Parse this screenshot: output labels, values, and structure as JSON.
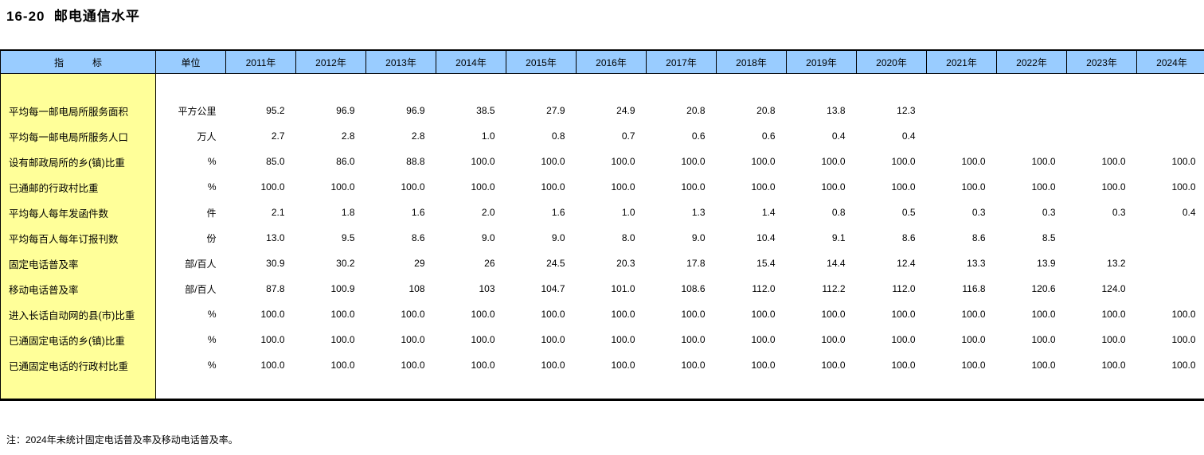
{
  "page": {
    "title": "16-20  邮电通信水平",
    "note": "注：2024年未统计固定电话普及率及移动电话普及率。"
  },
  "colors": {
    "header_bg": "#99CCFF",
    "label_bg": "#FFFF99",
    "border": "#000000"
  },
  "table": {
    "header": {
      "indicator": "指　　　标",
      "unit": "单位",
      "years": [
        "2011年",
        "2012年",
        "2013年",
        "2014年",
        "2015年",
        "2016年",
        "2017年",
        "2018年",
        "2019年",
        "2020年",
        "2021年",
        "2022年",
        "2023年",
        "2024年"
      ]
    },
    "rows": [
      {
        "label": "平均每一邮电局所服务面积",
        "unit": "平方公里",
        "values": [
          "95.2",
          "96.9",
          "96.9",
          "38.5",
          "27.9",
          "24.9",
          "20.8",
          "20.8",
          "13.8",
          "12.3",
          "",
          "",
          "",
          ""
        ]
      },
      {
        "label": "平均每一邮电局所服务人口",
        "unit": "万人",
        "values": [
          "2.7",
          "2.8",
          "2.8",
          "1.0",
          "0.8",
          "0.7",
          "0.6",
          "0.6",
          "0.4",
          "0.4",
          "",
          "",
          "",
          ""
        ]
      },
      {
        "label": "设有邮政局所的乡(镇)比重",
        "unit": "%",
        "values": [
          "85.0",
          "86.0",
          "88.8",
          "100.0",
          "100.0",
          "100.0",
          "100.0",
          "100.0",
          "100.0",
          "100.0",
          "100.0",
          "100.0",
          "100.0",
          "100.0"
        ]
      },
      {
        "label": "已通邮的行政村比重",
        "unit": "%",
        "values": [
          "100.0",
          "100.0",
          "100.0",
          "100.0",
          "100.0",
          "100.0",
          "100.0",
          "100.0",
          "100.0",
          "100.0",
          "100.0",
          "100.0",
          "100.0",
          "100.0"
        ]
      },
      {
        "label": "平均每人每年发函件数",
        "unit": "件",
        "values": [
          "2.1",
          "1.8",
          "1.6",
          "2.0",
          "1.6",
          "1.0",
          "1.3",
          "1.4",
          "0.8",
          "0.5",
          "0.3",
          "0.3",
          "0.3",
          "0.4"
        ]
      },
      {
        "label": "平均每百人每年订报刊数",
        "unit": "份",
        "values": [
          "13.0",
          "9.5",
          "8.6",
          "9.0",
          "9.0",
          "8.0",
          "9.0",
          "10.4",
          "9.1",
          "8.6",
          "8.6",
          "8.5",
          "",
          ""
        ]
      },
      {
        "label": "固定电话普及率",
        "unit": "部/百人",
        "values": [
          "30.9",
          "30.2",
          "29",
          "26",
          "24.5",
          "20.3",
          "17.8",
          "15.4",
          "14.4",
          "12.4",
          "13.3",
          "13.9",
          "13.2",
          ""
        ]
      },
      {
        "label": "移动电话普及率",
        "unit": "部/百人",
        "values": [
          "87.8",
          "100.9",
          "108",
          "103",
          "104.7",
          "101.0",
          "108.6",
          "112.0",
          "112.2",
          "112.0",
          "116.8",
          "120.6",
          "124.0",
          ""
        ]
      },
      {
        "label": "进入长话自动网的县(市)比重",
        "unit": "%",
        "values": [
          "100.0",
          "100.0",
          "100.0",
          "100.0",
          "100.0",
          "100.0",
          "100.0",
          "100.0",
          "100.0",
          "100.0",
          "100.0",
          "100.0",
          "100.0",
          "100.0"
        ]
      },
      {
        "label": "已通固定电话的乡(镇)比重",
        "unit": "%",
        "values": [
          "100.0",
          "100.0",
          "100.0",
          "100.0",
          "100.0",
          "100.0",
          "100.0",
          "100.0",
          "100.0",
          "100.0",
          "100.0",
          "100.0",
          "100.0",
          "100.0"
        ]
      },
      {
        "label": "已通固定电话的行政村比重",
        "unit": "%",
        "values": [
          "100.0",
          "100.0",
          "100.0",
          "100.0",
          "100.0",
          "100.0",
          "100.0",
          "100.0",
          "100.0",
          "100.0",
          "100.0",
          "100.0",
          "100.0",
          "100.0"
        ]
      }
    ]
  }
}
